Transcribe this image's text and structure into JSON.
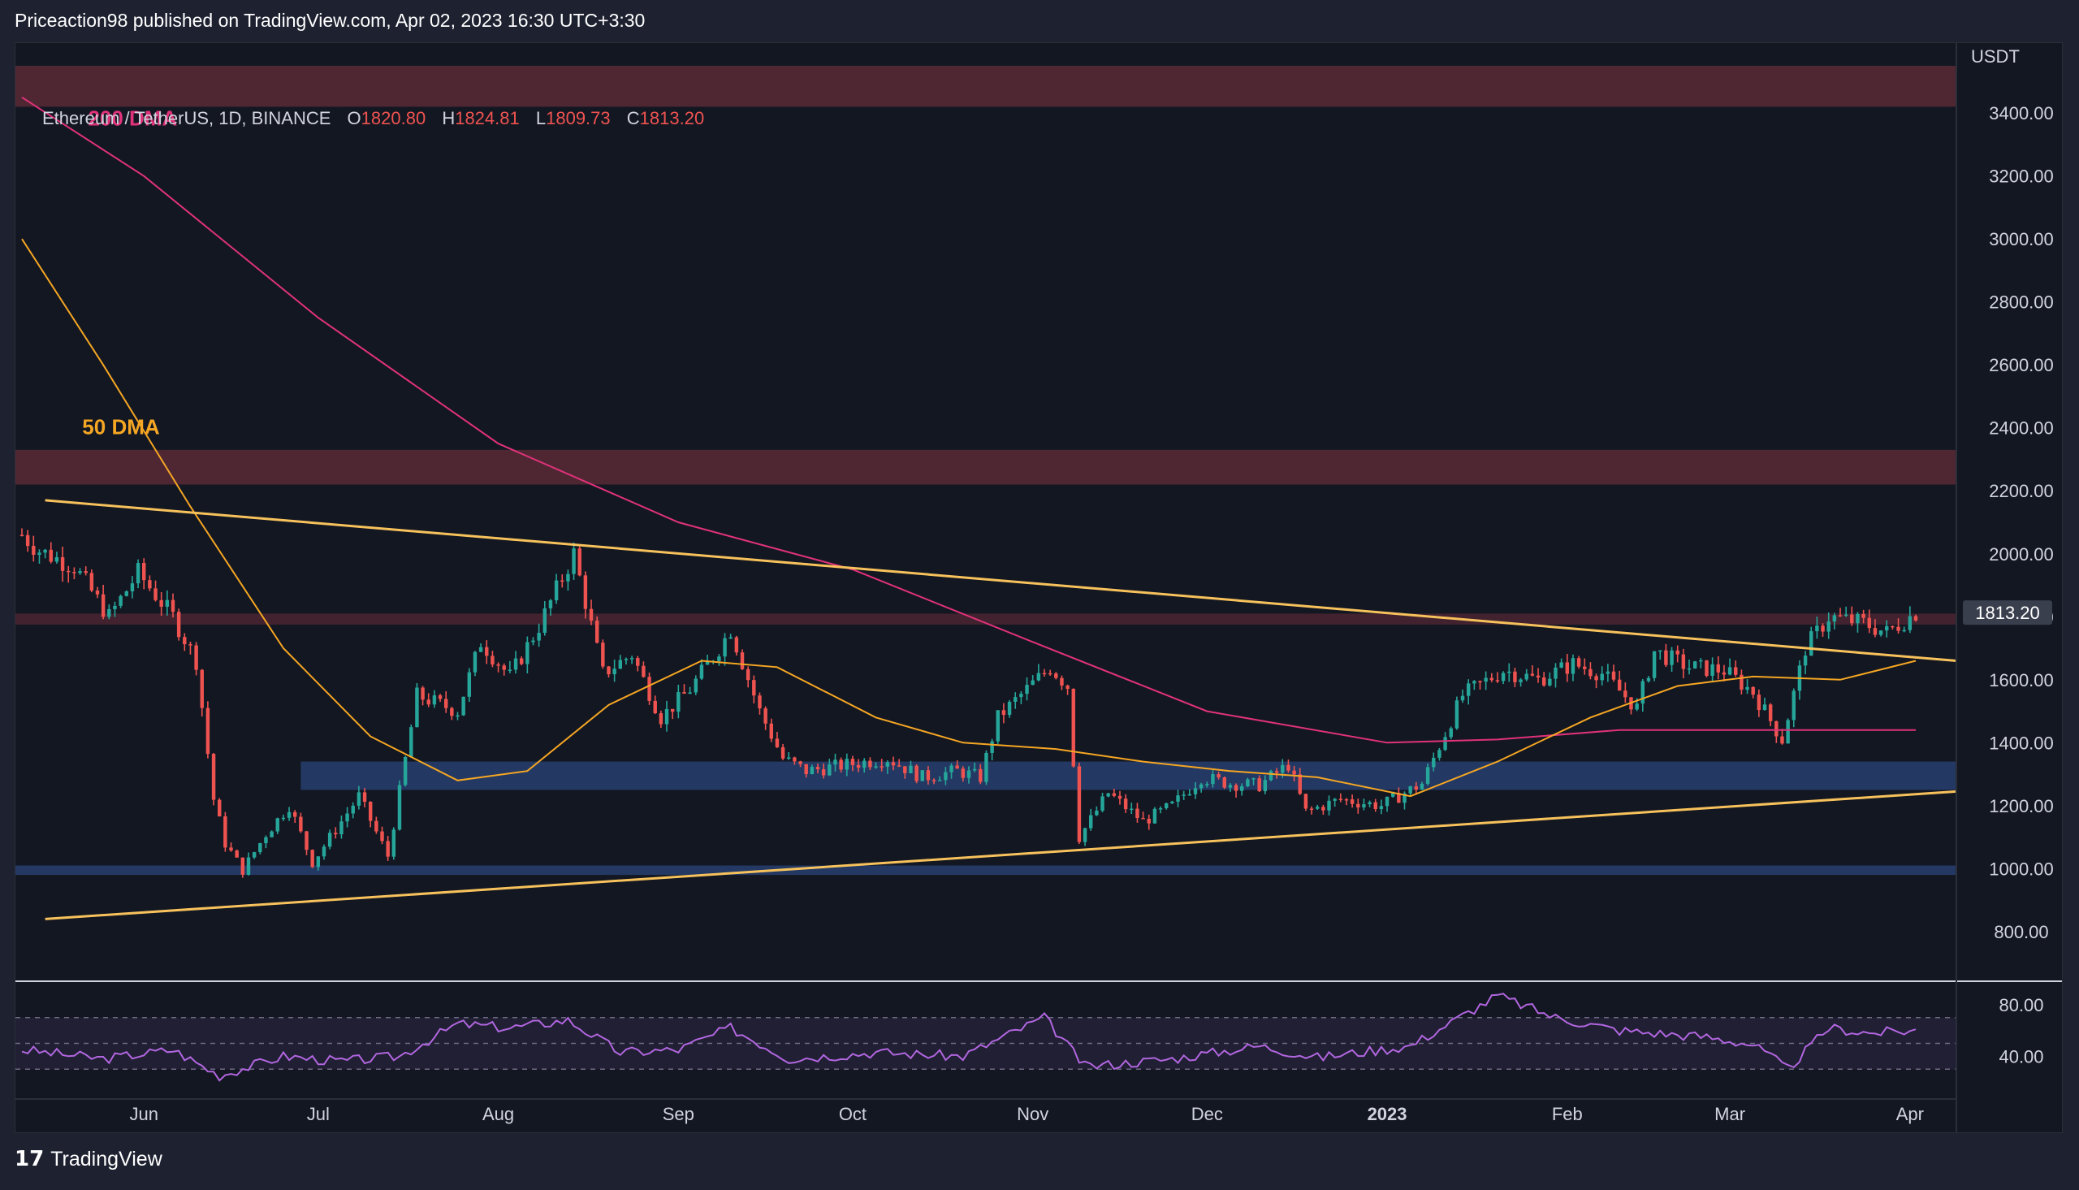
{
  "header": {
    "text": "Priceaction98 published on TradingView.com, Apr 02, 2023 16:30 UTC+3:30"
  },
  "legend": {
    "symbol": "Ethereum / TetherUS, 1D, BINANCE",
    "o_label": "O",
    "o": "1820.80",
    "h_label": "H",
    "h": "1824.81",
    "l_label": "L",
    "l": "1809.73",
    "c_label": "C",
    "c": "1813.20"
  },
  "footer": {
    "brand": "TradingView",
    "logo_glyph": "17"
  },
  "colors": {
    "up": "#26a69a",
    "down": "#ef5350",
    "ma50": "#f5a623",
    "ma200": "#e0327a",
    "trendline": "#f7c25c",
    "resistance_zone": "#5a2a36",
    "support_zone": "#27406f",
    "rsi": "#b266e0"
  },
  "chart_data": {
    "type": "candlestick",
    "symbol": "Ethereum / TetherUS",
    "timeframe": "1D",
    "exchange": "BINANCE",
    "y_axis_unit": "USDT",
    "ylim": [
      650,
      3550
    ],
    "y_ticks": [
      "3400.00",
      "3200.00",
      "3000.00",
      "2800.00",
      "2600.00",
      "2400.00",
      "2200.00",
      "2000.00",
      "1800.00",
      "1600.00",
      "1400.00",
      "1200.00",
      "1000.00",
      "800.00"
    ],
    "y_tick_values": [
      3400,
      3200,
      3000,
      2800,
      2600,
      2400,
      2200,
      2000,
      1800,
      1600,
      1400,
      1200,
      1000,
      800
    ],
    "x_ticks": [
      "Jun",
      "Jul",
      "Aug",
      "Sep",
      "Oct",
      "Nov",
      "Dec",
      "2023",
      "Feb",
      "Mar",
      "Apr"
    ],
    "x_tick_dates": [
      "2022-06-01",
      "2022-07-01",
      "2022-08-01",
      "2022-09-01",
      "2022-10-01",
      "2022-11-01",
      "2022-12-01",
      "2023-01-01",
      "2023-02-01",
      "2023-03-01",
      "2023-04-01"
    ],
    "date_range": [
      "2022-05-11",
      "2023-04-02"
    ],
    "last_price": "1813.20",
    "close_path": [
      [
        "2022-05-11",
        2060
      ],
      [
        "2022-05-14",
        2010
      ],
      [
        "2022-05-20",
        1960
      ],
      [
        "2022-05-26",
        1800
      ],
      [
        "2022-05-31",
        1940
      ],
      [
        "2022-06-06",
        1800
      ],
      [
        "2022-06-10",
        1660
      ],
      [
        "2022-06-13",
        1220
      ],
      [
        "2022-06-15",
        1080
      ],
      [
        "2022-06-18",
        995
      ],
      [
        "2022-06-22",
        1110
      ],
      [
        "2022-06-26",
        1200
      ],
      [
        "2022-06-30",
        1020
      ],
      [
        "2022-07-05",
        1150
      ],
      [
        "2022-07-08",
        1230
      ],
      [
        "2022-07-13",
        1040
      ],
      [
        "2022-07-18",
        1550
      ],
      [
        "2022-07-25",
        1500
      ],
      [
        "2022-07-29",
        1720
      ],
      [
        "2022-08-03",
        1610
      ],
      [
        "2022-08-08",
        1770
      ],
      [
        "2022-08-14",
        2000
      ],
      [
        "2022-08-19",
        1620
      ],
      [
        "2022-08-24",
        1680
      ],
      [
        "2022-08-29",
        1480
      ],
      [
        "2022-09-03",
        1570
      ],
      [
        "2022-09-08",
        1700
      ],
      [
        "2022-09-10",
        1760
      ],
      [
        "2022-09-15",
        1500
      ],
      [
        "2022-09-19",
        1350
      ],
      [
        "2022-09-23",
        1310
      ],
      [
        "2022-09-30",
        1330
      ],
      [
        "2022-10-07",
        1350
      ],
      [
        "2022-10-13",
        1290
      ],
      [
        "2022-10-19",
        1310
      ],
      [
        "2022-10-23",
        1290
      ],
      [
        "2022-10-26",
        1480
      ],
      [
        "2022-10-31",
        1570
      ],
      [
        "2022-11-04",
        1640
      ],
      [
        "2022-11-07",
        1580
      ],
      [
        "2022-11-09",
        1100
      ],
      [
        "2022-11-14",
        1240
      ],
      [
        "2022-11-20",
        1150
      ],
      [
        "2022-11-25",
        1200
      ],
      [
        "2022-11-30",
        1290
      ],
      [
        "2022-12-05",
        1270
      ],
      [
        "2022-12-10",
        1265
      ],
      [
        "2022-12-15",
        1330
      ],
      [
        "2022-12-18",
        1180
      ],
      [
        "2022-12-24",
        1220
      ],
      [
        "2022-12-31",
        1200
      ],
      [
        "2023-01-07",
        1270
      ],
      [
        "2023-01-14",
        1550
      ],
      [
        "2023-01-21",
        1630
      ],
      [
        "2023-01-27",
        1600
      ],
      [
        "2023-02-02",
        1650
      ],
      [
        "2023-02-07",
        1620
      ],
      [
        "2023-02-13",
        1510
      ],
      [
        "2023-02-16",
        1690
      ],
      [
        "2023-02-22",
        1640
      ],
      [
        "2023-02-28",
        1630
      ],
      [
        "2023-03-05",
        1560
      ],
      [
        "2023-03-10",
        1410
      ],
      [
        "2023-03-14",
        1700
      ],
      [
        "2023-03-18",
        1800
      ],
      [
        "2023-03-24",
        1780
      ],
      [
        "2023-03-28",
        1750
      ],
      [
        "2023-04-02",
        1813
      ]
    ],
    "ma50_path": [
      [
        "2022-05-11",
        3000
      ],
      [
        "2022-05-25",
        2600
      ],
      [
        "2022-06-09",
        2150
      ],
      [
        "2022-06-25",
        1700
      ],
      [
        "2022-07-10",
        1420
      ],
      [
        "2022-07-25",
        1280
      ],
      [
        "2022-08-06",
        1310
      ],
      [
        "2022-08-20",
        1520
      ],
      [
        "2022-09-05",
        1660
      ],
      [
        "2022-09-18",
        1640
      ],
      [
        "2022-10-05",
        1480
      ],
      [
        "2022-10-20",
        1400
      ],
      [
        "2022-11-05",
        1380
      ],
      [
        "2022-11-20",
        1340
      ],
      [
        "2022-12-05",
        1310
      ],
      [
        "2022-12-20",
        1290
      ],
      [
        "2023-01-05",
        1230
      ],
      [
        "2023-01-20",
        1340
      ],
      [
        "2023-02-05",
        1480
      ],
      [
        "2023-02-20",
        1580
      ],
      [
        "2023-03-05",
        1610
      ],
      [
        "2023-03-20",
        1600
      ],
      [
        "2023-04-02",
        1660
      ]
    ],
    "ma200_path": [
      [
        "2022-05-11",
        3450
      ],
      [
        "2022-06-01",
        3200
      ],
      [
        "2022-07-01",
        2750
      ],
      [
        "2022-08-01",
        2350
      ],
      [
        "2022-09-01",
        2100
      ],
      [
        "2022-10-01",
        1950
      ],
      [
        "2022-11-01",
        1720
      ],
      [
        "2022-12-01",
        1500
      ],
      [
        "2023-01-01",
        1400
      ],
      [
        "2023-01-20",
        1410
      ],
      [
        "2023-02-10",
        1440
      ],
      [
        "2023-03-10",
        1440
      ],
      [
        "2023-04-02",
        1440
      ]
    ],
    "annotations": {
      "labels": [
        {
          "text": "200 DMA",
          "color": "#e0327a",
          "anchor_date": "2022-05-14",
          "price": 3360
        },
        {
          "text": "50 DMA",
          "color": "#f5a623",
          "anchor_date": "2022-05-13",
          "price": 2380
        }
      ],
      "trendlines": [
        {
          "name": "descending-resistance",
          "from": [
            "2022-05-15",
            2170
          ],
          "to": [
            "2023-04-15",
            1660
          ]
        },
        {
          "name": "ascending-support",
          "from": [
            "2022-05-15",
            840
          ],
          "to": [
            "2023-04-15",
            1245
          ]
        }
      ],
      "zones": [
        {
          "name": "resistance-zone-top",
          "low": 3420,
          "high": 3550,
          "color": "#5a2a36"
        },
        {
          "name": "resistance-zone-2200",
          "low": 2220,
          "high": 2330,
          "color": "#5a2a36"
        },
        {
          "name": "resistance-zone-1800",
          "low": 1775,
          "high": 1810,
          "color": "#4a2430"
        },
        {
          "name": "support-zone-1300",
          "low": 1250,
          "high": 1340,
          "color": "#27406f",
          "start": "2022-06-28"
        },
        {
          "name": "support-zone-1000",
          "low": 980,
          "high": 1010,
          "color": "#27406f"
        }
      ]
    },
    "rsi": {
      "ylim": [
        10,
        95
      ],
      "y_ticks": [
        "80.00",
        "40.00"
      ],
      "y_tick_values": [
        80,
        40
      ],
      "bands": [
        70,
        50,
        30
      ],
      "path": [
        [
          "2022-05-11",
          45
        ],
        [
          "2022-05-25",
          38
        ],
        [
          "2022-06-06",
          45
        ],
        [
          "2022-06-14",
          25
        ],
        [
          "2022-06-25",
          40
        ],
        [
          "2022-07-05",
          36
        ],
        [
          "2022-07-15",
          40
        ],
        [
          "2022-07-25",
          65
        ],
        [
          "2022-08-03",
          62
        ],
        [
          "2022-08-13",
          68
        ],
        [
          "2022-08-22",
          43
        ],
        [
          "2022-09-01",
          45
        ],
        [
          "2022-09-10",
          62
        ],
        [
          "2022-09-20",
          38
        ],
        [
          "2022-10-05",
          43
        ],
        [
          "2022-10-20",
          40
        ],
        [
          "2022-11-03",
          70
        ],
        [
          "2022-11-10",
          32
        ],
        [
          "2022-11-25",
          38
        ],
        [
          "2022-12-10",
          48
        ],
        [
          "2022-12-20",
          39
        ],
        [
          "2023-01-05",
          48
        ],
        [
          "2023-01-20",
          87
        ],
        [
          "2023-01-30",
          70
        ],
        [
          "2023-02-10",
          60
        ],
        [
          "2023-02-25",
          55
        ],
        [
          "2023-03-05",
          49
        ],
        [
          "2023-03-11",
          30
        ],
        [
          "2023-03-18",
          62
        ],
        [
          "2023-03-25",
          58
        ],
        [
          "2023-04-02",
          60
        ]
      ]
    }
  }
}
